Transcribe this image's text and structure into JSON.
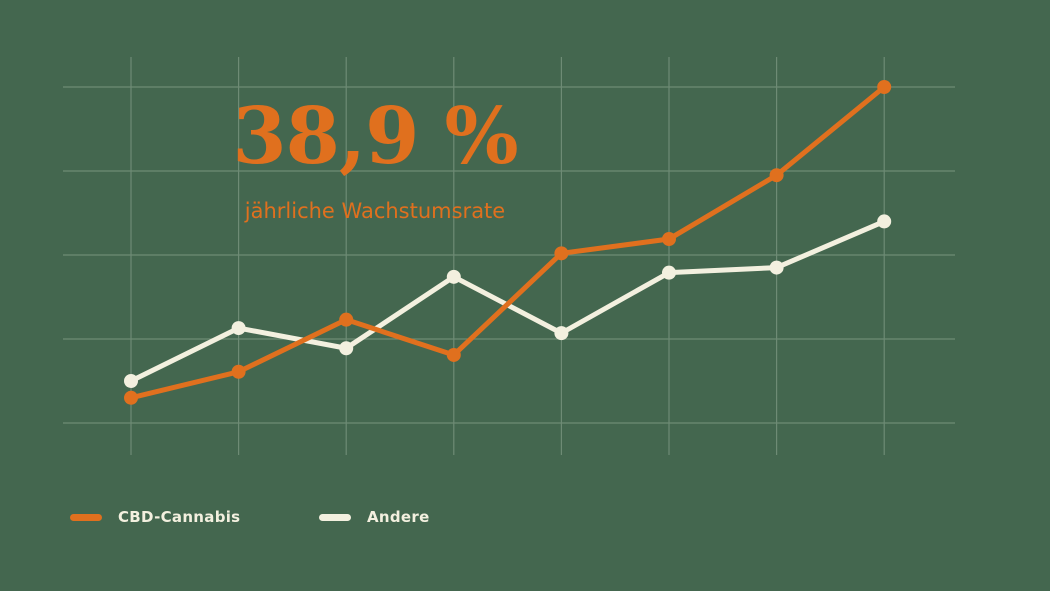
{
  "colors": {
    "background": "#44674f",
    "grid": "#6e8b75",
    "cbd": "#e0701e",
    "other": "#f3f0df"
  },
  "headline": {
    "value": "38,9 %",
    "label": "jährliche Wachstumsrate"
  },
  "chart_data": {
    "type": "line",
    "title": "",
    "xlabel": "",
    "ylabel": "",
    "x": [
      1,
      2,
      3,
      4,
      5,
      6,
      7,
      8
    ],
    "ylim": [
      0,
      4
    ],
    "grid": true,
    "legend": "bottom-left",
    "series": [
      {
        "name": "CBD-Cannabis",
        "color": "#e0701e",
        "values": [
          0.3,
          0.61,
          1.23,
          0.81,
          2.02,
          2.19,
          2.95,
          4.0
        ]
      },
      {
        "name": "Andere",
        "color": "#f3f0df",
        "values": [
          0.5,
          1.13,
          0.89,
          1.74,
          1.07,
          1.79,
          1.85,
          2.4
        ]
      }
    ]
  }
}
